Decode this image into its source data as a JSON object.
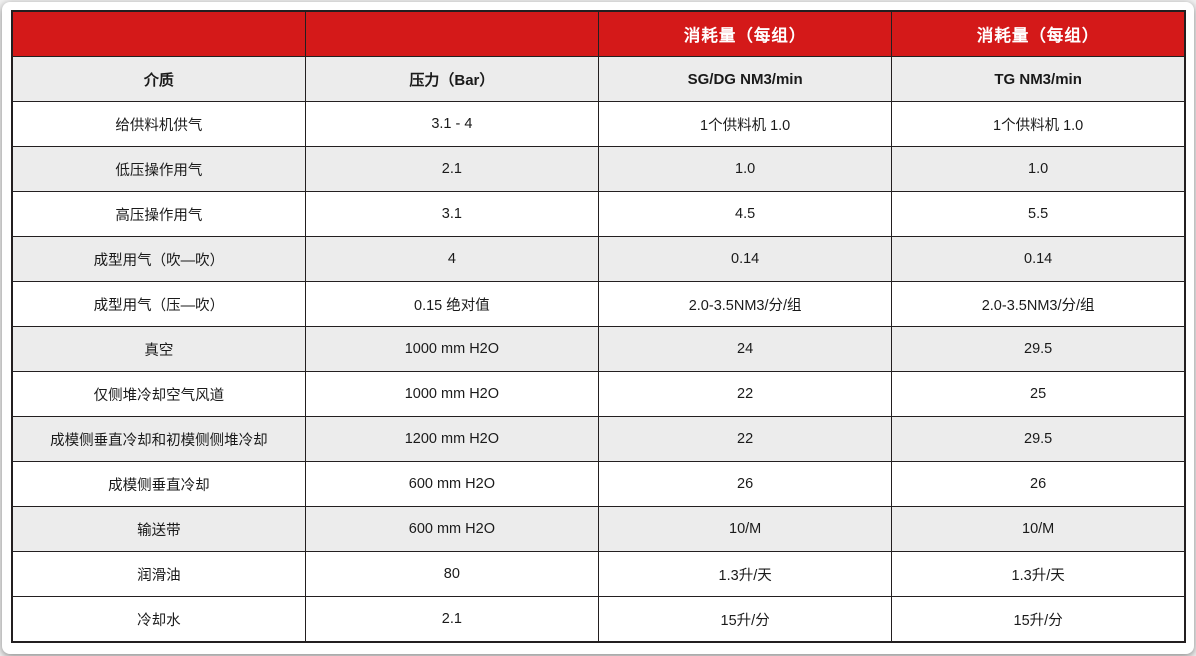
{
  "colors": {
    "header_red": "#d41919",
    "header_text": "#ffffff",
    "row_gray": "#ececec",
    "row_white": "#ffffff",
    "border": "#231f20",
    "text": "#1a1a1a"
  },
  "table": {
    "header_row1": {
      "col1": "",
      "col2": "",
      "col3": "消耗量（每组）",
      "col4": "消耗量（每组）"
    },
    "header_row2": {
      "col1": "介质",
      "col2": "压力（Bar）",
      "col3": "SG/DG NM3/min",
      "col4": "TG NM3/min"
    },
    "rows": [
      {
        "shaded": false,
        "cells": [
          "给供料机供气",
          "3.1 - 4",
          "1个供料机 1.0",
          "1个供料机 1.0"
        ]
      },
      {
        "shaded": true,
        "cells": [
          "低压操作用气",
          "2.1",
          "1.0",
          "1.0"
        ]
      },
      {
        "shaded": false,
        "cells": [
          "高压操作用气",
          "3.1",
          "4.5",
          "5.5"
        ]
      },
      {
        "shaded": true,
        "cells": [
          "成型用气（吹—吹）",
          "4",
          "0.14",
          "0.14"
        ]
      },
      {
        "shaded": false,
        "cells": [
          "成型用气（压—吹）",
          "0.15 绝对值",
          "2.0-3.5NM3/分/组",
          "2.0-3.5NM3/分/组"
        ]
      },
      {
        "shaded": true,
        "cells": [
          "真空",
          "1000 mm H2O",
          "24",
          "29.5"
        ]
      },
      {
        "shaded": false,
        "cells": [
          "仅侧堆冷却空气风道",
          "1000 mm H2O",
          "22",
          "25"
        ]
      },
      {
        "shaded": true,
        "cells": [
          "成模侧垂直冷却和初模侧侧堆冷却",
          "1200 mm H2O",
          "22",
          "29.5"
        ]
      },
      {
        "shaded": false,
        "cells": [
          "成模侧垂直冷却",
          "600 mm H2O",
          "26",
          "26"
        ]
      },
      {
        "shaded": true,
        "cells": [
          "输送带",
          "600 mm H2O",
          "10/M",
          "10/M"
        ]
      },
      {
        "shaded": false,
        "cells": [
          "润滑油",
          "80",
          "1.3升/天",
          "1.3升/天"
        ]
      },
      {
        "shaded": false,
        "cells": [
          "冷却水",
          "2.1",
          "15升/分",
          "15升/分"
        ]
      }
    ]
  }
}
